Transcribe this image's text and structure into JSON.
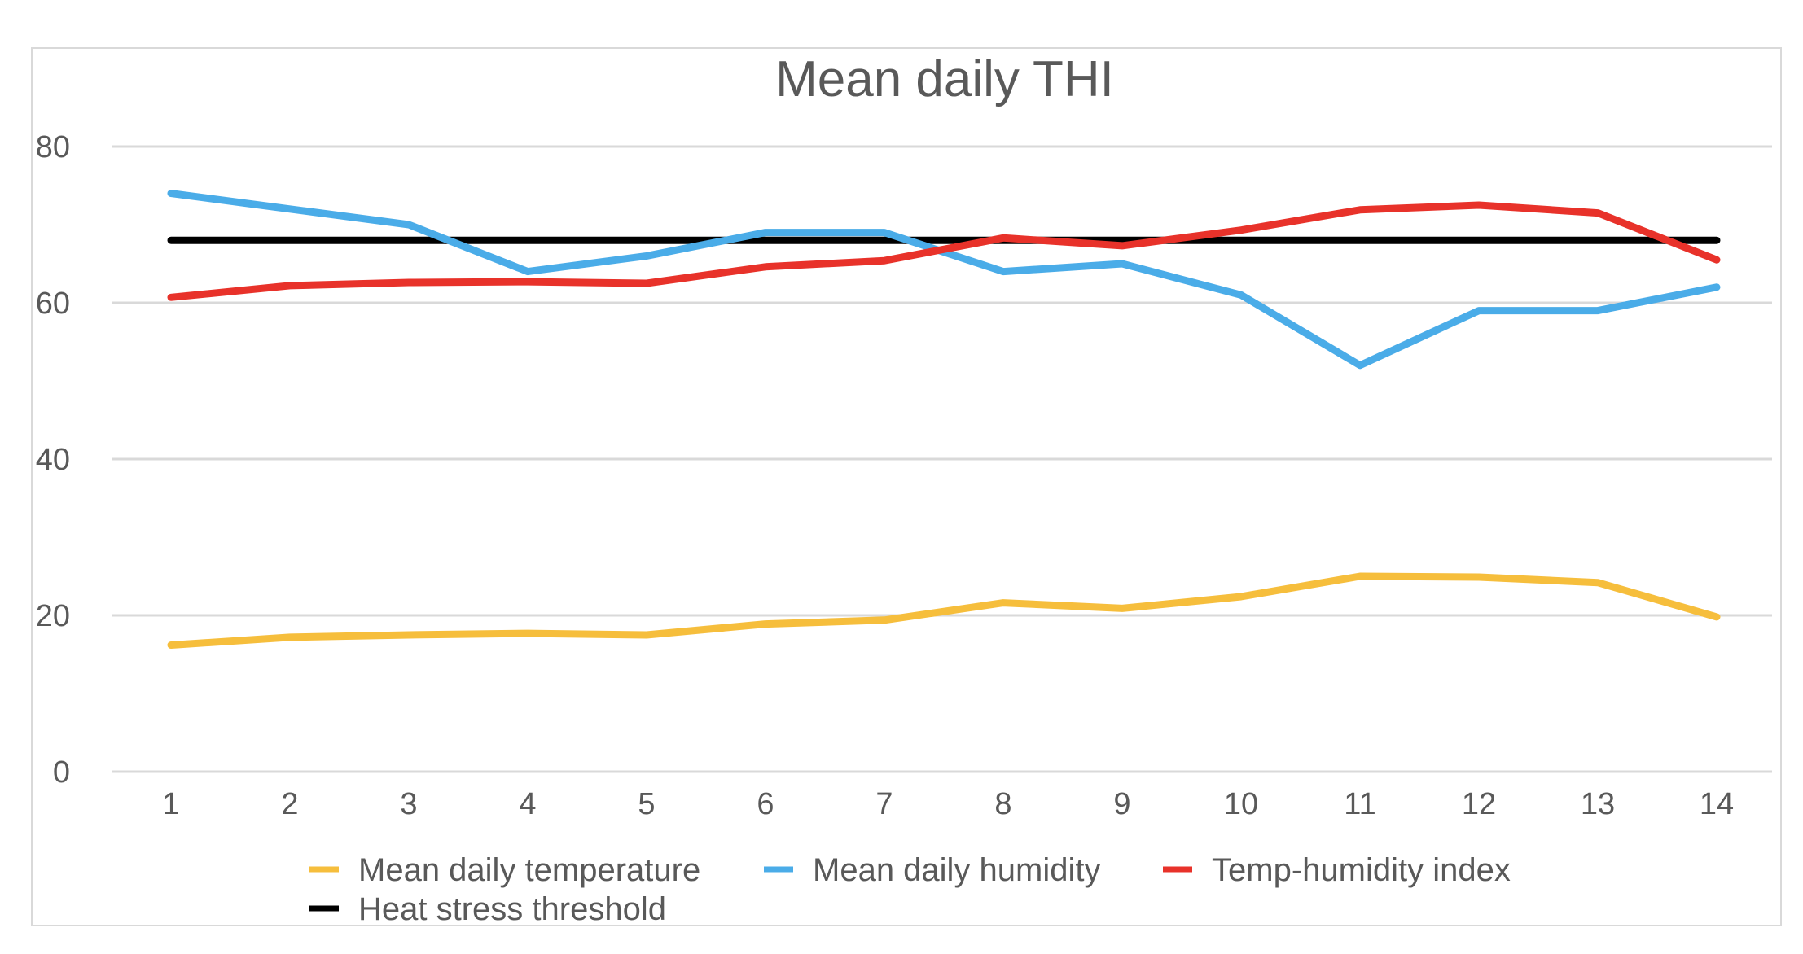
{
  "chart_data": {
    "type": "line",
    "title": "Mean daily THI",
    "xlabel": "",
    "ylabel": "",
    "x": [
      1,
      2,
      3,
      4,
      5,
      6,
      7,
      8,
      9,
      10,
      11,
      12,
      13,
      14
    ],
    "x_tick_labels": [
      "1",
      "2",
      "3",
      "4",
      "5",
      "6",
      "7",
      "8",
      "9",
      "10",
      "11",
      "12",
      "13",
      "14"
    ],
    "ylim": [
      0,
      80
    ],
    "y_ticks": [
      0,
      20,
      40,
      60,
      80
    ],
    "y_tick_labels": [
      "0",
      "20",
      "40",
      "60",
      "80"
    ],
    "grid": "horizontal",
    "legend_position": "bottom",
    "series": [
      {
        "name": "Mean daily temperature",
        "color": "#F6BE3C",
        "values": [
          16.2,
          17.2,
          17.5,
          17.7,
          17.5,
          18.9,
          19.4,
          21.6,
          20.9,
          22.4,
          25.0,
          24.9,
          24.2,
          19.8
        ]
      },
      {
        "name": "Mean daily humidity",
        "color": "#4AACE8",
        "values": [
          74,
          72,
          70,
          64,
          66,
          69,
          69,
          64,
          65,
          61,
          52,
          59,
          59,
          62
        ]
      },
      {
        "name": "Temp-humidity index",
        "color": "#E8322A",
        "values": [
          60.7,
          62.2,
          62.6,
          62.7,
          62.5,
          64.6,
          65.4,
          68.3,
          67.3,
          69.3,
          71.9,
          72.5,
          71.5,
          65.5
        ]
      },
      {
        "name": "Heat stress threshold",
        "color": "#000000",
        "values": [
          68,
          68,
          68,
          68,
          68,
          68,
          68,
          68,
          68,
          68,
          68,
          68,
          68,
          68
        ]
      }
    ]
  }
}
